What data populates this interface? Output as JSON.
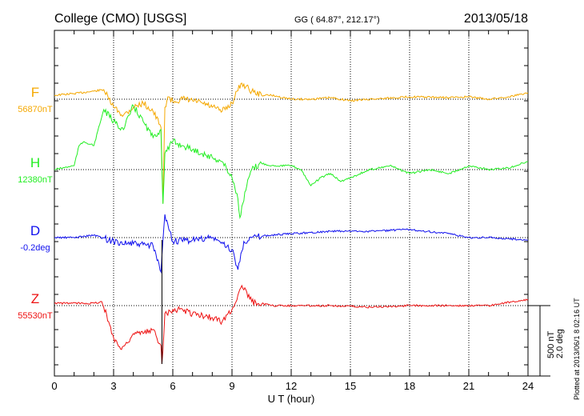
{
  "chart_data": {
    "type": "line",
    "title": "College (CMO)  [USGS]",
    "coords": "GG ( 64.87°, 212.17°)",
    "date": "2013/05/18",
    "xlabel": "U T (hour)",
    "xlim": [
      0,
      24
    ],
    "xticks": [
      "0",
      "3",
      "6",
      "9",
      "12",
      "15",
      "18",
      "21",
      "24"
    ],
    "grid": true,
    "scale_bar": {
      "nT": "500 nT",
      "deg": "2.0 deg",
      "nT_value": 500,
      "deg_value": 2.0
    },
    "footer": "Plotted at 2013/06/1 8 02:16 UT",
    "series": [
      {
        "name": "F",
        "baseline_label": "56870nT",
        "unit": "nT",
        "color": "#f5a800",
        "x": [
          0,
          1,
          2,
          2.5,
          2.75,
          3,
          3.5,
          4,
          4.5,
          5,
          5.4,
          5.5,
          5.6,
          5.75,
          6,
          6.5,
          7,
          7.5,
          8,
          8.5,
          9,
          9.25,
          9.5,
          10,
          10.5,
          11,
          12,
          13,
          14,
          15,
          16,
          18,
          20,
          21,
          22,
          23,
          24
        ],
        "values": [
          28,
          40,
          57,
          68,
          0,
          -57,
          -114,
          -57,
          -28,
          -85,
          -199,
          -738,
          -57,
          17,
          -17,
          0,
          -11,
          -28,
          -57,
          -85,
          -28,
          57,
          114,
          57,
          28,
          28,
          0,
          0,
          11,
          -11,
          0,
          17,
          11,
          17,
          0,
          17,
          45
        ]
      },
      {
        "name": "H",
        "baseline_label": "12380nT",
        "unit": "nT",
        "color": "#22ee22",
        "x": [
          0,
          1,
          1.25,
          1.5,
          2,
          2.5,
          3,
          3.5,
          4,
          4.5,
          5,
          5.4,
          5.5,
          5.6,
          6,
          6.5,
          7,
          7.5,
          8,
          8.5,
          9,
          9.25,
          9.4,
          9.75,
          10,
          10.5,
          11,
          12,
          12.5,
          13,
          13.5,
          14,
          14.5,
          15,
          16,
          17,
          18,
          19,
          20,
          21,
          22,
          23,
          24
        ],
        "values": [
          0,
          28,
          170,
          199,
          170,
          426,
          341,
          284,
          454,
          341,
          227,
          284,
          -244,
          114,
          199,
          170,
          142,
          114,
          85,
          57,
          -57,
          -170,
          -341,
          -114,
          0,
          45,
          28,
          28,
          0,
          -114,
          -57,
          -28,
          -85,
          -57,
          0,
          28,
          -28,
          0,
          -28,
          28,
          0,
          11,
          57
        ]
      },
      {
        "name": "D",
        "baseline_label": "-0.2deg",
        "unit": "deg",
        "color": "#1010ee",
        "x": [
          0,
          1,
          2,
          3,
          4,
          5,
          5.4,
          5.6,
          6,
          7,
          8,
          9,
          9.3,
          9.6,
          10,
          11,
          12,
          14,
          16,
          18,
          20,
          21,
          22,
          24
        ],
        "values": [
          0,
          0,
          0.07,
          -0.11,
          -0.18,
          -0.23,
          -0.98,
          0.66,
          -0.11,
          -0.07,
          0,
          -0.34,
          -0.91,
          -0.11,
          0,
          0.07,
          0.11,
          0.18,
          0.18,
          0.23,
          0.11,
          0,
          0,
          -0.07
        ]
      },
      {
        "name": "Z",
        "baseline_label": "55530nT",
        "unit": "nT",
        "color": "#ee1111",
        "x": [
          0,
          2,
          2.4,
          2.75,
          3,
          3.4,
          4,
          4.5,
          5,
          5.4,
          5.45,
          5.6,
          6,
          6.5,
          7,
          8,
          8.5,
          9,
          9.5,
          10,
          11,
          12,
          14,
          16,
          18,
          20,
          22,
          24
        ],
        "values": [
          17,
          17,
          28,
          -114,
          -227,
          -312,
          -199,
          -199,
          -170,
          -284,
          -415,
          -57,
          -28,
          -28,
          -57,
          -85,
          -114,
          -28,
          142,
          28,
          0,
          0,
          0,
          -11,
          0,
          0,
          0,
          45
        ]
      }
    ]
  }
}
